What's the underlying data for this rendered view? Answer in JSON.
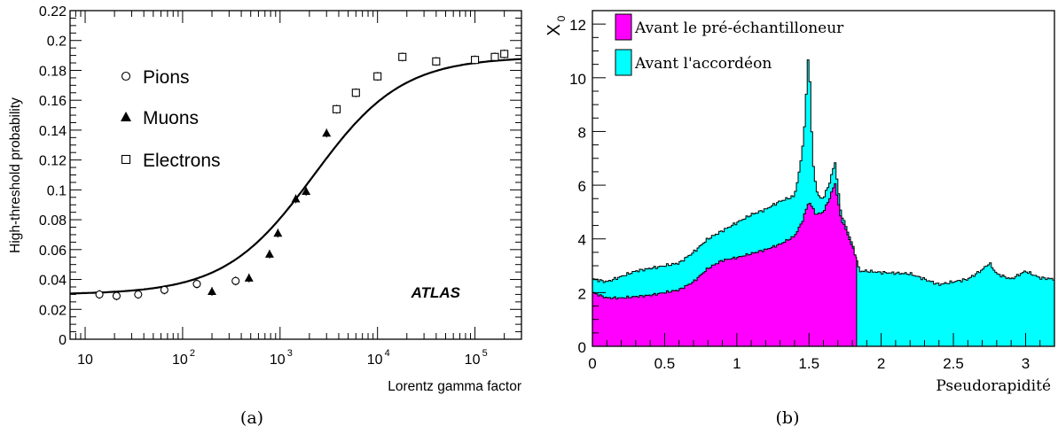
{
  "chart_data": [
    {
      "type": "scatter",
      "ylabel": "High-threshold probability",
      "xlabel": "Lorentz gamma factor",
      "x_scale": "log",
      "xlim": [
        7,
        300000
      ],
      "ylim": [
        0,
        0.22
      ],
      "yticks": [
        "0",
        "0.02",
        "0.04",
        "0.06",
        "0.08",
        "0.1",
        "0.12",
        "0.14",
        "0.16",
        "0.18",
        "0.2",
        "0.22"
      ],
      "xticks": [
        {
          "base": "10",
          "exp": ""
        },
        {
          "base": "10",
          "exp": "2"
        },
        {
          "base": "10",
          "exp": "3"
        },
        {
          "base": "10",
          "exp": "4"
        },
        {
          "base": "10",
          "exp": "5"
        }
      ],
      "annotation": "ATLAS",
      "panel_label": "(a)",
      "series": [
        {
          "name": "Pions",
          "marker": "circle",
          "x": [
            14,
            21,
            35,
            65,
            140,
            350
          ],
          "y": [
            0.03,
            0.029,
            0.03,
            0.033,
            0.037,
            0.039
          ]
        },
        {
          "name": "Muons",
          "marker": "triangle",
          "x": [
            200,
            480,
            780,
            950,
            1450,
            1850,
            3000
          ],
          "y": [
            0.032,
            0.041,
            0.057,
            0.071,
            0.094,
            0.099,
            0.138
          ]
        },
        {
          "name": "Electrons",
          "marker": "square",
          "x": [
            3800,
            6000,
            10000,
            18000,
            40000,
            100000,
            160000,
            200000
          ],
          "y": [
            0.154,
            0.165,
            0.176,
            0.189,
            0.186,
            0.187,
            0.189,
            0.191
          ]
        }
      ],
      "fit": {
        "low": 0.03,
        "high": 0.189,
        "midpoint_x": 2200,
        "slope": 2.2
      }
    },
    {
      "type": "area",
      "ylabel": "X",
      "ylabel_sub": "0",
      "xlabel": "Pseudorapidité",
      "xlim": [
        0,
        3.2
      ],
      "ylim": [
        0,
        12.5
      ],
      "xticks": [
        "0",
        "0.5",
        "1",
        "1.5",
        "2",
        "2.5",
        "3"
      ],
      "yticks": [
        "0",
        "2",
        "4",
        "6",
        "8",
        "10",
        "12"
      ],
      "panel_label": "(b)",
      "series": [
        {
          "name": "Avant le pré-échantilloneur",
          "color": "#ff00ff",
          "x": [
            0,
            0.1,
            0.2,
            0.3,
            0.4,
            0.5,
            0.6,
            0.7,
            0.8,
            0.9,
            1.0,
            1.1,
            1.2,
            1.3,
            1.4,
            1.45,
            1.5,
            1.55,
            1.6,
            1.65,
            1.68,
            1.72,
            1.76,
            1.8,
            1.83
          ],
          "y": [
            2.0,
            1.8,
            1.8,
            1.85,
            1.9,
            2.0,
            2.1,
            2.4,
            2.9,
            3.2,
            3.3,
            3.45,
            3.6,
            3.8,
            4.1,
            4.6,
            5.4,
            4.9,
            5.0,
            5.6,
            6.1,
            4.8,
            4.3,
            3.7,
            3.3
          ]
        },
        {
          "name": "Avant l'accordéon",
          "color": "#00ffff",
          "x": [
            0,
            0.1,
            0.2,
            0.3,
            0.4,
            0.5,
            0.6,
            0.7,
            0.8,
            0.9,
            1.0,
            1.1,
            1.2,
            1.3,
            1.4,
            1.44,
            1.47,
            1.49,
            1.5,
            1.51,
            1.53,
            1.56,
            1.6,
            1.65,
            1.68,
            1.72,
            1.76,
            1.8,
            1.85,
            1.9,
            2.0,
            2.2,
            2.4,
            2.6,
            2.7,
            2.75,
            2.8,
            2.9,
            3.0,
            3.1,
            3.2
          ],
          "y": [
            2.5,
            2.4,
            2.6,
            2.8,
            2.9,
            3.0,
            3.1,
            3.5,
            4.0,
            4.3,
            4.6,
            4.9,
            5.1,
            5.4,
            5.6,
            6.7,
            8.2,
            10.3,
            11.3,
            9.0,
            6.7,
            5.6,
            5.5,
            6.2,
            6.9,
            5.0,
            4.4,
            3.8,
            2.8,
            2.8,
            2.75,
            2.7,
            2.3,
            2.5,
            2.85,
            3.1,
            2.7,
            2.5,
            2.8,
            2.55,
            2.5
          ]
        }
      ]
    }
  ]
}
